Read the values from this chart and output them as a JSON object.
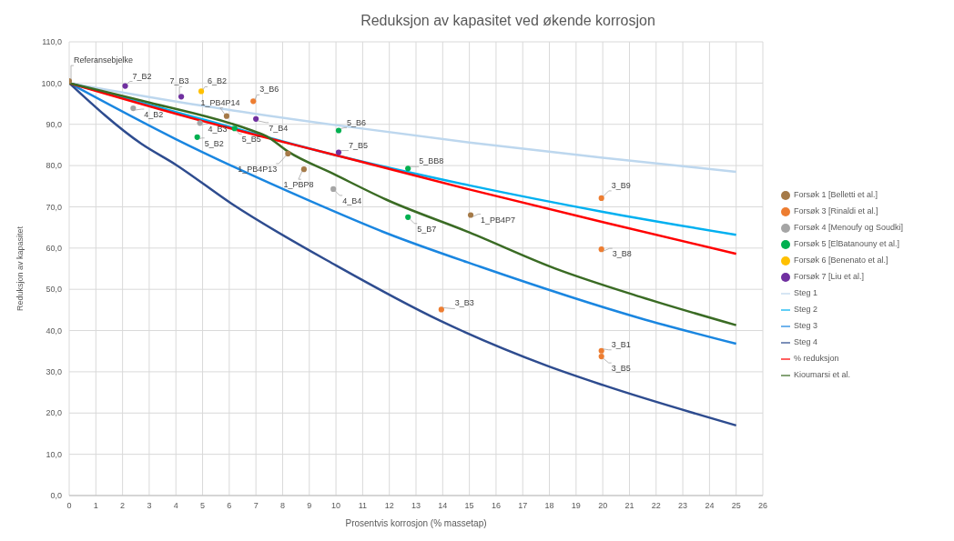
{
  "chart_data": {
    "type": "scatter",
    "title": "Reduksjon av kapasitet ved økende korrosjon",
    "xlabel": "Prosentvis korrosjon  (% massetap)",
    "ylabel": "Reduksjon av kapasitet",
    "xlim": [
      0,
      26
    ],
    "xticks": [
      0,
      1,
      2,
      3,
      4,
      5,
      6,
      7,
      8,
      9,
      10,
      11,
      12,
      13,
      14,
      15,
      16,
      17,
      18,
      19,
      20,
      21,
      22,
      23,
      24,
      25,
      26
    ],
    "ylim": [
      0,
      110
    ],
    "yticks": [
      {
        "value": 0,
        "label": "0,0"
      },
      {
        "value": 10,
        "label": "10,0"
      },
      {
        "value": 20,
        "label": "20,0"
      },
      {
        "value": 30,
        "label": "30,0"
      },
      {
        "value": 40,
        "label": "40,0"
      },
      {
        "value": 50,
        "label": "50,0"
      },
      {
        "value": 60,
        "label": "60,0"
      },
      {
        "value": 70,
        "label": "70,0"
      },
      {
        "value": 80,
        "label": "80,0"
      },
      {
        "value": 90,
        "label": "90,0"
      },
      {
        "value": 100,
        "label": "100,0"
      },
      {
        "value": 110,
        "label": "110,0"
      }
    ],
    "grid": true,
    "legend": "right",
    "series": [
      {
        "name": "Forsøk 1 [Belletti et al.]",
        "marker": "circle",
        "color": "#a57a48",
        "x": [
          0,
          5.9,
          8.2,
          8.8,
          15.05
        ],
        "values": [
          100.5,
          92.0,
          82.9,
          79.1,
          68.0
        ]
      },
      {
        "name": "Forsøk 3 [Rinaldi et al.]",
        "marker": "circle",
        "color": "#ed7d31",
        "x": [
          6.9,
          19.95,
          19.95,
          13.95,
          19.95,
          19.95
        ],
        "values": [
          95.6,
          72.1,
          59.7,
          45.1,
          35.1,
          33.7
        ]
      },
      {
        "name": "Forsøk 4 [Menoufy og Soudki]",
        "marker": "circle",
        "color": "#a5a5a5",
        "x": [
          2.4,
          4.9,
          9.9
        ],
        "values": [
          93.9,
          90.3,
          74.3
        ]
      },
      {
        "name": "Forsøk 5 [ElBatanouny et al.]",
        "marker": "circle",
        "color": "#00b050",
        "x": [
          4.8,
          6.2,
          10.1,
          12.7,
          12.7
        ],
        "values": [
          86.9,
          89.0,
          88.5,
          79.3,
          67.5
        ]
      },
      {
        "name": "Forsøk 6 [Benenato et al.]",
        "marker": "circle",
        "color": "#ffc000",
        "x": [
          4.95
        ],
        "values": [
          98.0
        ]
      },
      {
        "name": "Forsøk 7 [Liu et al.]",
        "marker": "circle",
        "color": "#7030a0",
        "x": [
          2.1,
          4.2,
          7.0,
          10.1
        ],
        "values": [
          99.3,
          96.7,
          91.3,
          83.2
        ]
      },
      {
        "name": "Steg 1",
        "type": "line",
        "color": "#bdd7ee",
        "x": [
          0,
          5,
          10,
          15,
          20,
          25
        ],
        "values": [
          100,
          94.5,
          89.8,
          85.6,
          81.9,
          78.5
        ]
      },
      {
        "name": "Steg 2",
        "type": "line",
        "color": "#00b0f0",
        "x": [
          0,
          5,
          10,
          15,
          20,
          25
        ],
        "values": [
          100,
          91.2,
          82.5,
          75.2,
          68.8,
          63.2
        ]
      },
      {
        "name": "Steg 3",
        "type": "line",
        "color": "#1a86e0",
        "x": [
          0,
          4,
          9,
          11.9,
          15.4,
          21.4,
          25
        ],
        "values": [
          100,
          86.4,
          71.5,
          63.6,
          55.5,
          43.0,
          36.8
        ]
      },
      {
        "name": "Steg 4",
        "type": "line",
        "color": "#2e4c8f",
        "x": [
          0,
          2.7,
          4,
          6.1,
          10,
          13.9,
          17.9,
          20,
          25
        ],
        "values": [
          100,
          85.3,
          80.2,
          70.7,
          55.8,
          42.4,
          31.5,
          26.8,
          17.0
        ]
      },
      {
        "name": "% reduksjon",
        "type": "line",
        "color": "#ff0000",
        "x": [
          0,
          5,
          7,
          10,
          15,
          20,
          25
        ],
        "values": [
          100,
          90.8,
          87.4,
          82.5,
          74.2,
          66.3,
          58.6
        ]
      },
      {
        "name": "Kioumarsi et al.",
        "type": "line",
        "color": "#3a6b24",
        "x": [
          0,
          3,
          6.85,
          7.4,
          8.2,
          9.9,
          11.9,
          15,
          18.2,
          21.4,
          25
        ],
        "values": [
          100,
          95.3,
          88.5,
          87.1,
          83.4,
          78.0,
          71.7,
          63.8,
          55.1,
          48.2,
          41.3
        ]
      }
    ],
    "annotations": [
      {
        "text": "Referansebjelke",
        "x": 0,
        "y": 100.5
      },
      {
        "text": "7_B2",
        "x": 2.1,
        "y": 99.3
      },
      {
        "text": "7_B3",
        "x": 4.2,
        "y": 96.7
      },
      {
        "text": "6_B2",
        "x": 4.95,
        "y": 98.0
      },
      {
        "text": "3_B6",
        "x": 6.9,
        "y": 95.6
      },
      {
        "text": "1_PB4P14",
        "x": 5.9,
        "y": 92.0
      },
      {
        "text": "4_B2",
        "x": 2.4,
        "y": 93.9
      },
      {
        "text": "4_B3",
        "x": 4.9,
        "y": 90.3
      },
      {
        "text": "5_B2",
        "x": 4.8,
        "y": 86.9
      },
      {
        "text": "5_B5",
        "x": 6.2,
        "y": 89.0
      },
      {
        "text": "7_B4",
        "x": 7.0,
        "y": 91.3
      },
      {
        "text": "5_B6",
        "x": 10.1,
        "y": 88.5
      },
      {
        "text": "7_B5",
        "x": 10.1,
        "y": 83.2
      },
      {
        "text": "1_PB4P13",
        "x": 8.2,
        "y": 82.9
      },
      {
        "text": "1_PBP8",
        "x": 8.8,
        "y": 79.1
      },
      {
        "text": "4_B4",
        "x": 9.9,
        "y": 74.3
      },
      {
        "text": "5_BB8",
        "x": 12.7,
        "y": 79.3
      },
      {
        "text": "5_B7",
        "x": 12.7,
        "y": 67.5
      },
      {
        "text": "1_PB4P7",
        "x": 15.05,
        "y": 68.0
      },
      {
        "text": "3_B9",
        "x": 19.95,
        "y": 72.1
      },
      {
        "text": "3_B8",
        "x": 19.95,
        "y": 59.7
      },
      {
        "text": "3_B3",
        "x": 13.95,
        "y": 45.1
      },
      {
        "text": "3_B1",
        "x": 19.95,
        "y": 35.1
      },
      {
        "text": "3_B5",
        "x": 19.95,
        "y": 33.7
      }
    ]
  }
}
